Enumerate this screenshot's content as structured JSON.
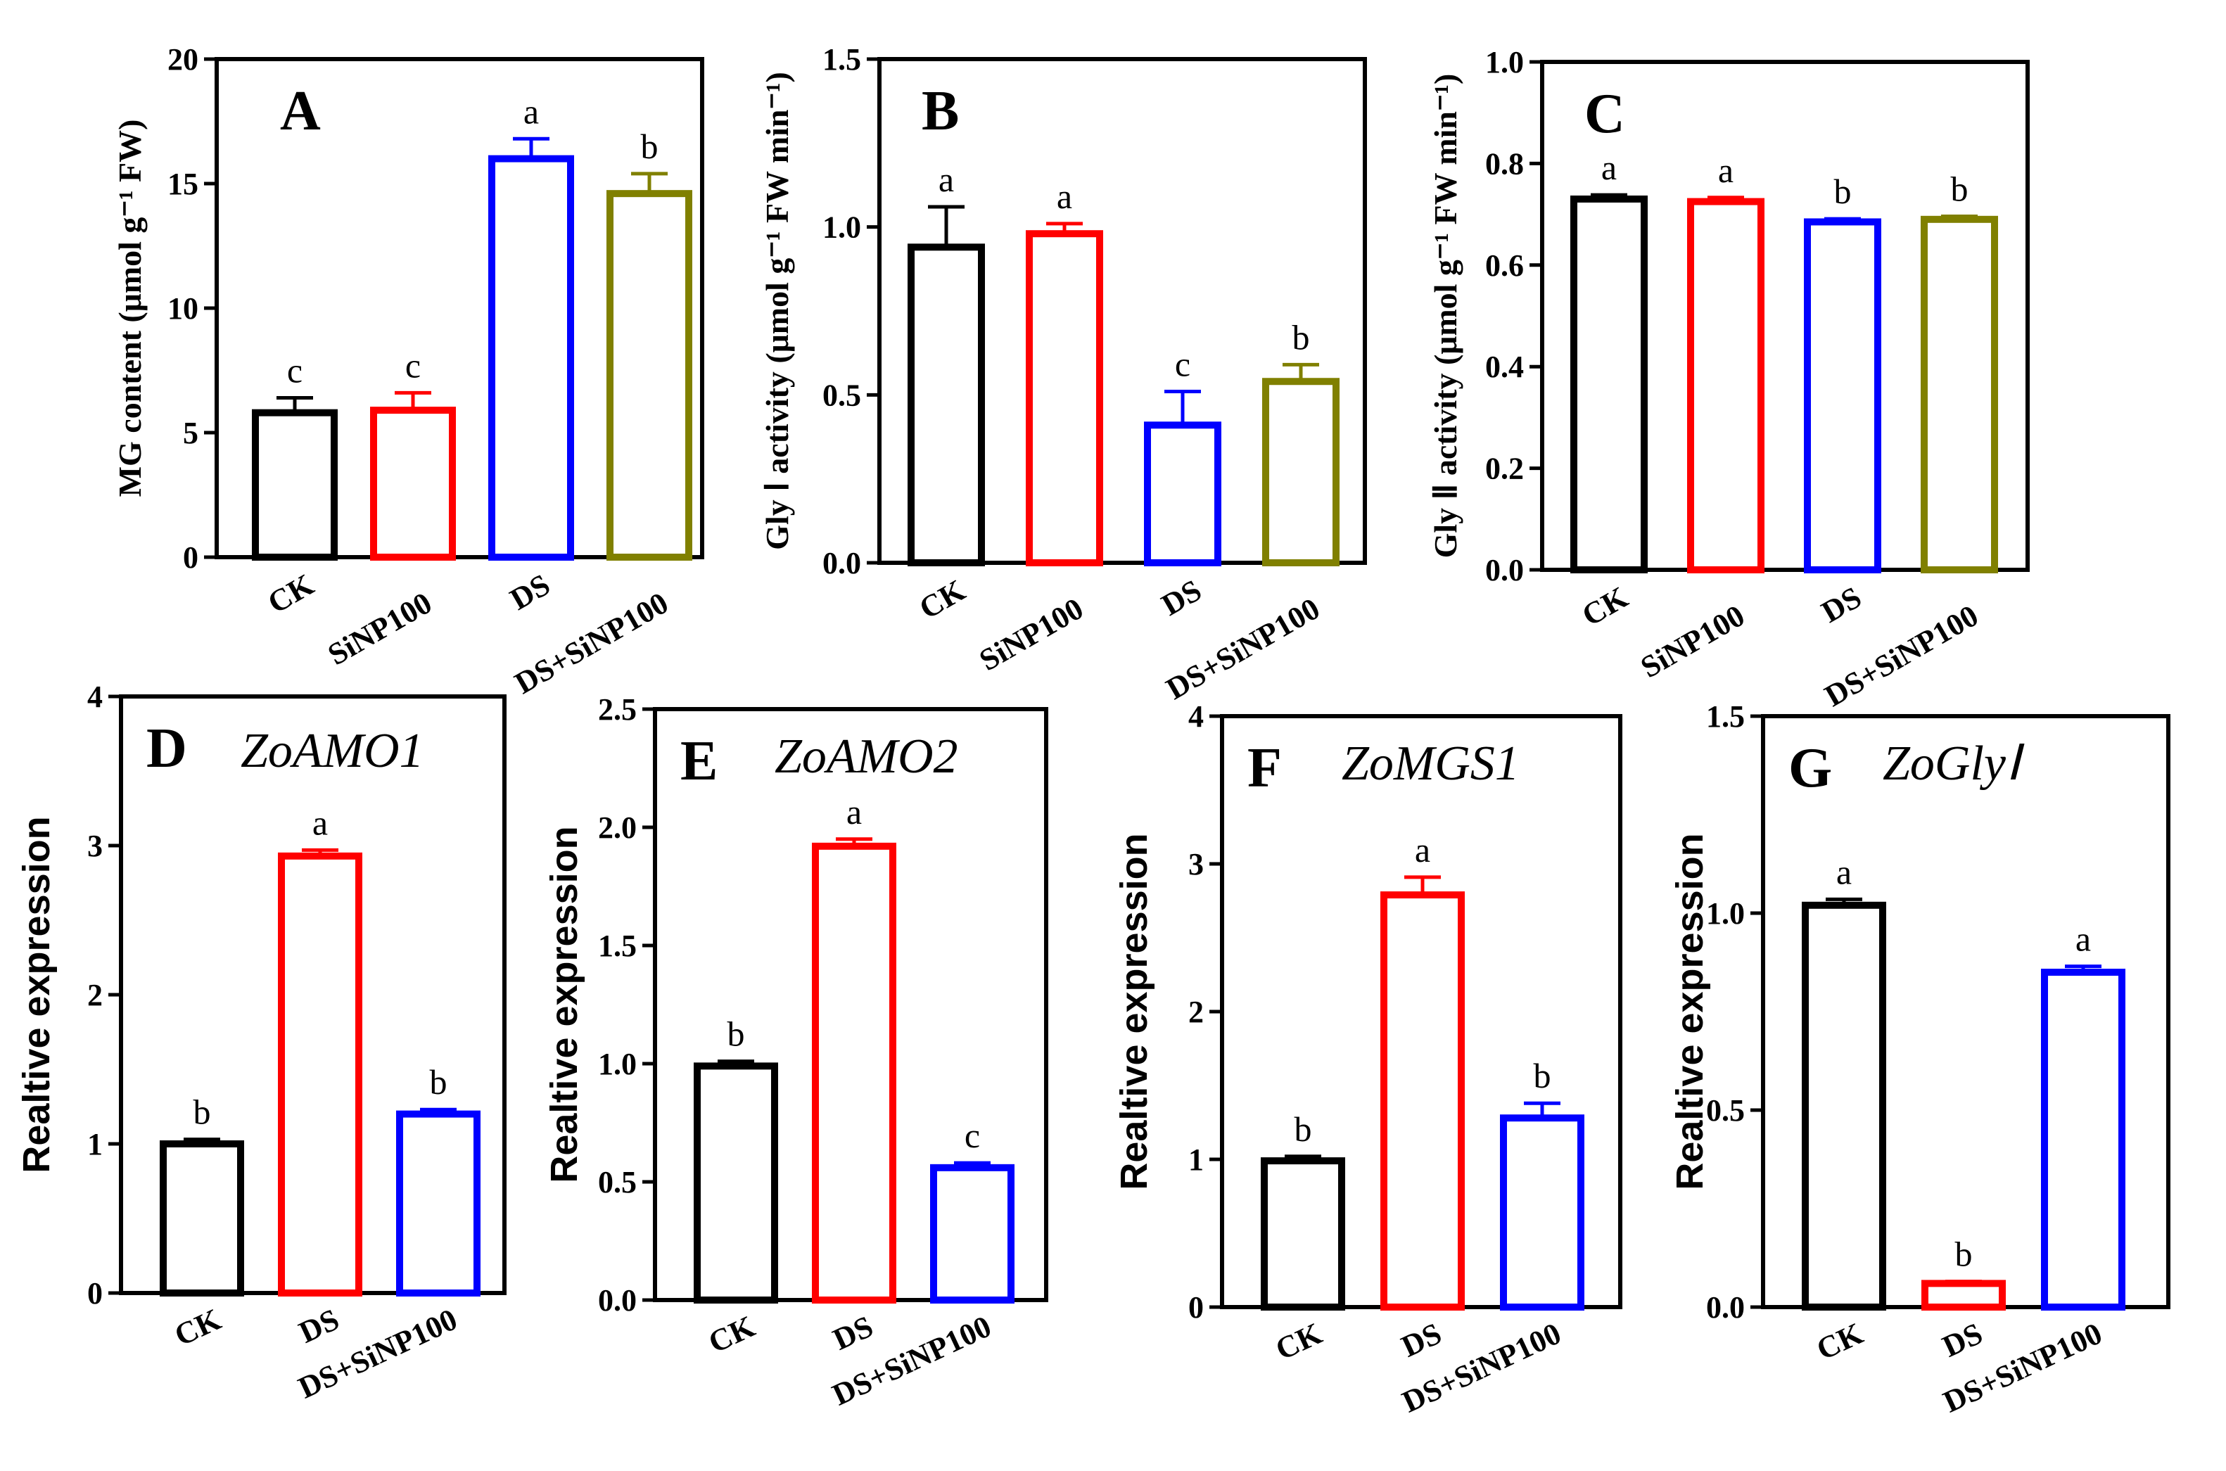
{
  "chart_data": [
    {
      "type": "bar",
      "panel": "A",
      "gene": "",
      "ylabel": "MG content (μmol g⁻¹ FW)",
      "ylim": [
        0,
        20
      ],
      "yticks": [
        "0",
        "5",
        "10",
        "15",
        "20"
      ],
      "categories": [
        "CK",
        "SiNP100",
        "DS",
        "DS+SiNP100"
      ],
      "values": [
        5.8,
        5.9,
        16.0,
        14.6
      ],
      "errors": [
        0.6,
        0.7,
        0.8,
        0.8
      ],
      "letters": [
        "c",
        "c",
        "a",
        "b"
      ],
      "colors": [
        "#000000",
        "#ff0000",
        "#0000ff",
        "#808000"
      ]
    },
    {
      "type": "bar",
      "panel": "B",
      "gene": "",
      "ylabel": "Gly Ⅰ activity (μmol g⁻¹ FW min⁻¹)",
      "ylim": [
        0,
        1.5
      ],
      "yticks": [
        "0.0",
        "0.5",
        "1.0",
        "1.5"
      ],
      "categories": [
        "CK",
        "SiNP100",
        "DS",
        "DS+SiNP100"
      ],
      "values": [
        0.94,
        0.98,
        0.41,
        0.54
      ],
      "errors": [
        0.12,
        0.03,
        0.1,
        0.05
      ],
      "letters": [
        "a",
        "a",
        "c",
        "b"
      ],
      "colors": [
        "#000000",
        "#ff0000",
        "#0000ff",
        "#808000"
      ]
    },
    {
      "type": "bar",
      "panel": "C",
      "gene": "",
      "ylabel": "Gly Ⅱ activity (μmol g⁻¹ FW min⁻¹)",
      "ylim": [
        0,
        1.0
      ],
      "yticks": [
        "0.0",
        "0.2",
        "0.4",
        "0.6",
        "0.8",
        "1.0"
      ],
      "categories": [
        "CK",
        "SiNP100",
        "DS",
        "DS+SiNP100"
      ],
      "values": [
        0.73,
        0.725,
        0.685,
        0.69
      ],
      "errors": [
        0.008,
        0.008,
        0.006,
        0.006
      ],
      "letters": [
        "a",
        "a",
        "b",
        "b"
      ],
      "colors": [
        "#000000",
        "#ff0000",
        "#0000ff",
        "#808000"
      ]
    },
    {
      "type": "bar",
      "panel": "D",
      "gene": "ZoAMO1",
      "ylabel": "Realtive expression",
      "ylim": [
        0,
        4
      ],
      "yticks": [
        "0",
        "1",
        "2",
        "3",
        "4"
      ],
      "categories": [
        "CK",
        "DS",
        "DS+SiNP100"
      ],
      "values": [
        1.0,
        2.93,
        1.2
      ],
      "errors": [
        0.03,
        0.04,
        0.03
      ],
      "letters": [
        "b",
        "a",
        "b"
      ],
      "colors": [
        "#000000",
        "#ff0000",
        "#0000ff"
      ]
    },
    {
      "type": "bar",
      "panel": "E",
      "gene": "ZoAMO2",
      "ylabel": "Realtive expression",
      "ylim": [
        0,
        2.5
      ],
      "yticks": [
        "0.0",
        "0.5",
        "1.0",
        "1.5",
        "2.0",
        "2.5"
      ],
      "categories": [
        "CK",
        "DS",
        "DS+SiNP100"
      ],
      "values": [
        0.99,
        1.92,
        0.56
      ],
      "errors": [
        0.02,
        0.03,
        0.02
      ],
      "letters": [
        "b",
        "a",
        "c"
      ],
      "colors": [
        "#000000",
        "#ff0000",
        "#0000ff"
      ]
    },
    {
      "type": "bar",
      "panel": "F",
      "gene": "ZoMGS1",
      "ylabel": "Realtive expression",
      "ylim": [
        0,
        4
      ],
      "yticks": [
        "0",
        "1",
        "2",
        "3",
        "4"
      ],
      "categories": [
        "CK",
        "DS",
        "DS+SiNP100"
      ],
      "values": [
        0.99,
        2.79,
        1.28
      ],
      "errors": [
        0.03,
        0.12,
        0.1
      ],
      "letters": [
        "b",
        "a",
        "b"
      ],
      "colors": [
        "#000000",
        "#ff0000",
        "#0000ff"
      ]
    },
    {
      "type": "bar",
      "panel": "G",
      "gene": "ZoGlyⅠ",
      "ylabel": "Realtive expression",
      "ylim": [
        0,
        1.5
      ],
      "yticks": [
        "0.0",
        "0.5",
        "1.0",
        "1.5"
      ],
      "categories": [
        "CK",
        "DS",
        "DS+SiNP100"
      ],
      "values": [
        1.02,
        0.06,
        0.85
      ],
      "errors": [
        0.015,
        0.005,
        0.015
      ],
      "letters": [
        "a",
        "b",
        "a"
      ],
      "colors": [
        "#000000",
        "#ff0000",
        "#0000ff"
      ]
    }
  ]
}
